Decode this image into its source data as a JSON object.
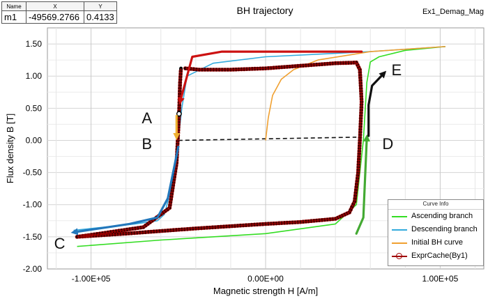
{
  "window_title": "BH trajectory",
  "design_label": "Ex1_Demag_Mag",
  "marker_table": {
    "headers": [
      "Name",
      "X",
      "Y"
    ],
    "rows": [
      [
        "m1",
        "-49569.2766",
        "0.4133"
      ]
    ]
  },
  "legend": {
    "title": "Curve Info",
    "items": [
      {
        "label": "Ascending branch",
        "color": "#33dd22"
      },
      {
        "label": "Descending branch",
        "color": "#33aadd"
      },
      {
        "label": "Initial BH curve",
        "color": "#f0a030"
      },
      {
        "label": "ExprCache(By1)",
        "color": "#a00000"
      }
    ]
  },
  "annotations": [
    "A",
    "B",
    "C",
    "D",
    "E"
  ],
  "chart_data": {
    "type": "line",
    "title": "BH trajectory",
    "xlabel": "Magnetic strength H [A/m]",
    "ylabel": "Flux density B [T]",
    "xlim": [
      -125000,
      125000
    ],
    "ylim": [
      -2.0,
      1.75
    ],
    "x_ticks": [
      "-1.00E+05",
      "0.00E+00",
      "1.00E+05"
    ],
    "y_ticks": [
      "-2.00",
      "-1.50",
      "-1.00",
      "-0.50",
      "0.00",
      "0.50",
      "1.00",
      "1.50"
    ],
    "grid": true,
    "legend_position": "bottom-right",
    "series": [
      {
        "name": "Ascending branch",
        "color": "#33dd22",
        "x": [
          -108000,
          -60000,
          0,
          40000,
          52000,
          56000,
          58000,
          60000,
          65000,
          80000,
          103000
        ],
        "y": [
          -1.65,
          -1.55,
          -1.45,
          -1.3,
          -1.0,
          0.0,
          0.9,
          1.22,
          1.3,
          1.4,
          1.46
        ]
      },
      {
        "name": "Descending branch",
        "color": "#33aadd",
        "x": [
          103000,
          60000,
          0,
          -30000,
          -45000,
          -48000,
          -50000,
          -53000,
          -56000,
          -58000,
          -62000,
          -75000,
          -110000
        ],
        "y": [
          1.46,
          1.38,
          1.3,
          1.2,
          1.0,
          0.5,
          0.0,
          -0.5,
          -0.95,
          -1.15,
          -1.25,
          -1.3,
          -1.4
        ]
      },
      {
        "name": "Initial BH curve",
        "color": "#f0a030",
        "x": [
          0,
          1500,
          4000,
          9000,
          16000,
          30000,
          60000,
          103000
        ],
        "y": [
          0.0,
          0.35,
          0.7,
          0.95,
          1.1,
          1.25,
          1.38,
          1.46
        ]
      },
      {
        "name": "ExprCache(By1)",
        "color": "#a00000",
        "x": [
          -46000,
          -38000,
          -20000,
          0,
          20000,
          40000,
          52000,
          54000,
          55000,
          54000,
          53000,
          51000,
          48000,
          40000,
          20000,
          0,
          -40000,
          -80000,
          -108000,
          -95000,
          -70000,
          -55000,
          -51000,
          -49569,
          -49000,
          -48500
        ],
        "y": [
          1.12,
          1.1,
          1.1,
          1.12,
          1.16,
          1.2,
          1.21,
          1.1,
          0.6,
          0.0,
          -0.5,
          -0.95,
          -1.12,
          -1.22,
          -1.27,
          -1.3,
          -1.37,
          -1.45,
          -1.5,
          -1.45,
          -1.35,
          -1.05,
          -0.35,
          0.4133,
          0.9,
          1.12
        ]
      }
    ],
    "dashed_line": {
      "x": [
        -50000,
        52000
      ],
      "y": [
        0.0,
        0.05
      ]
    },
    "arrows": [
      {
        "color": "#cc1111",
        "x": [
          55000,
          -25000,
          -42000,
          -49000
        ],
        "y": [
          1.38,
          1.38,
          1.3,
          0.6
        ]
      },
      {
        "color": "#f0b030",
        "x": [
          -51000,
          -51000
        ],
        "y": [
          0.38,
          0.05
        ]
      },
      {
        "color": "#2277bb",
        "x": [
          -50000,
          -56000,
          -62000,
          -78000,
          -110000
        ],
        "y": [
          -0.1,
          -0.9,
          -1.2,
          -1.3,
          -1.43
        ]
      },
      {
        "color": "#44aa33",
        "x": [
          52000,
          56000,
          58000
        ],
        "y": [
          -1.45,
          -1.2,
          0.05
        ]
      },
      {
        "color": "#111111",
        "x": [
          59000,
          59000,
          61000,
          68000
        ],
        "y": [
          0.07,
          0.55,
          0.85,
          1.05
        ]
      }
    ]
  }
}
